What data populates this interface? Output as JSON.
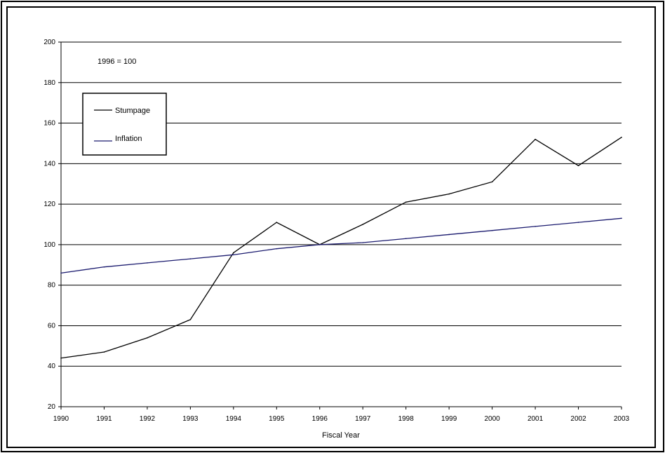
{
  "chart_data": {
    "type": "line",
    "xlabel": "Fiscal Year",
    "annotation": "1996 = 100",
    "ylim": [
      20,
      200
    ],
    "yticks": [
      20,
      40,
      60,
      80,
      100,
      120,
      140,
      160,
      180,
      200
    ],
    "x": [
      "1990",
      "1991",
      "1992",
      "1993",
      "1994",
      "1995",
      "1996",
      "1997",
      "1998",
      "1999",
      "2000",
      "2001",
      "2002",
      "2003"
    ],
    "series": [
      {
        "name": "Stumpage",
        "color": "#000000",
        "values": [
          44,
          47,
          54,
          63,
          96,
          111,
          100,
          110,
          121,
          125,
          131,
          152,
          139,
          153
        ]
      },
      {
        "name": "Inflation",
        "color": "#1a1a6e",
        "values": [
          86,
          89,
          91,
          93,
          95,
          98,
          100,
          101,
          103,
          105,
          107,
          109,
          111,
          113
        ]
      }
    ],
    "legend_position": "top-left",
    "grid": true
  }
}
